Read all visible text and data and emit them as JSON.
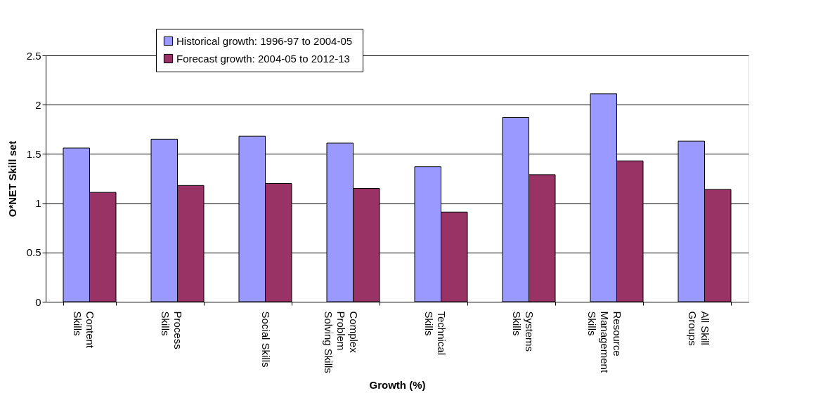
{
  "chart_data": {
    "type": "bar",
    "xlabel": "Growth (%)",
    "ylabel": "O*NET Skill set",
    "categories": [
      "Content\nSkills",
      "Process\nSkills",
      "Social Skills",
      "Complex\nProblem\nSolving Skills",
      "Technical\nSkills",
      "Systems\nSkills",
      "Resource\nManagement\nSkills",
      "All Skill\nGroups"
    ],
    "series": [
      {
        "name": "Historical growth:  1996-97 to 2004-05",
        "color": "#9999ff",
        "values": [
          1.56,
          1.65,
          1.68,
          1.61,
          1.37,
          1.87,
          2.11,
          1.63
        ]
      },
      {
        "name": "Forecast growth: 2004-05 to 2012-13",
        "color": "#993366",
        "values": [
          1.11,
          1.18,
          1.2,
          1.15,
          0.91,
          1.29,
          1.43,
          1.14
        ]
      }
    ],
    "ylim": [
      0,
      2.5
    ],
    "yticks": [
      0,
      0.5,
      1,
      1.5,
      2,
      2.5
    ],
    "grid": "y",
    "legend": "top"
  }
}
